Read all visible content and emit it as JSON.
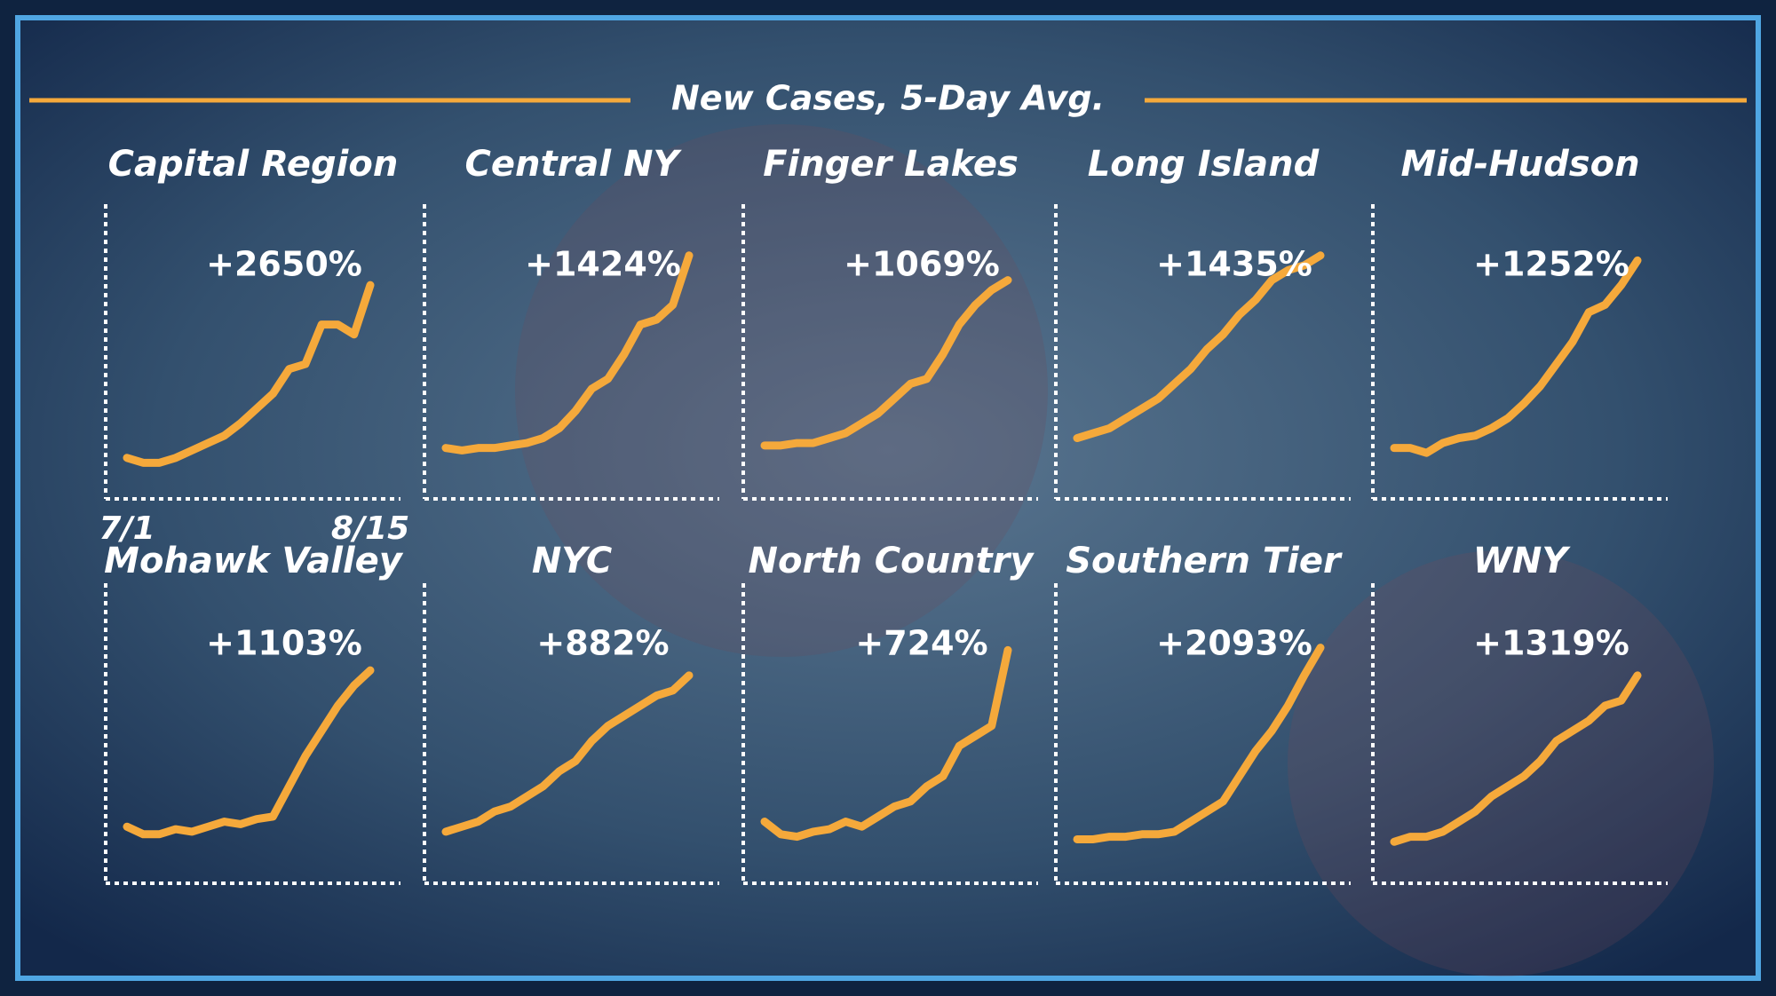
{
  "title": "New Cases, 5-Day Avg.",
  "chart_data": [
    {
      "type": "line",
      "title": "Capital Region",
      "annotation": "+2650%",
      "color": "#f5a93b",
      "xlim": [
        0,
        15
      ],
      "ylim": [
        0,
        100
      ],
      "xticks": [
        {
          "value": 0,
          "label": "7/1"
        },
        {
          "value": 15,
          "label": "8/15"
        }
      ],
      "values": [
        8,
        6,
        6,
        8,
        11,
        14,
        17,
        22,
        28,
        34,
        44,
        46,
        62,
        62,
        58,
        78
      ]
    },
    {
      "type": "line",
      "title": "Central NY",
      "annotation": "+1424%",
      "color": "#f5a93b",
      "xlim": [
        0,
        15
      ],
      "ylim": [
        0,
        100
      ],
      "values": [
        12,
        11,
        12,
        12,
        13,
        14,
        16,
        20,
        27,
        36,
        40,
        50,
        62,
        64,
        70,
        90
      ]
    },
    {
      "type": "line",
      "title": "Finger Lakes",
      "annotation": "+1069%",
      "color": "#f5a93b",
      "xlim": [
        0,
        15
      ],
      "ylim": [
        0,
        100
      ],
      "values": [
        13,
        13,
        14,
        14,
        16,
        18,
        22,
        26,
        32,
        38,
        40,
        50,
        62,
        70,
        76,
        80
      ]
    },
    {
      "type": "line",
      "title": "Long Island",
      "annotation": "+1435%",
      "color": "#f5a93b",
      "xlim": [
        0,
        15
      ],
      "ylim": [
        0,
        100
      ],
      "values": [
        16,
        18,
        20,
        24,
        28,
        32,
        38,
        44,
        52,
        58,
        66,
        72,
        80,
        84,
        86,
        90
      ]
    },
    {
      "type": "line",
      "title": "Mid-Hudson",
      "annotation": "+1252%",
      "color": "#f5a93b",
      "xlim": [
        0,
        15
      ],
      "ylim": [
        0,
        100
      ],
      "values": [
        12,
        12,
        10,
        14,
        16,
        17,
        20,
        24,
        30,
        37,
        46,
        55,
        67,
        70,
        78,
        88
      ]
    },
    {
      "type": "line",
      "title": "Mohawk Valley",
      "annotation": "+1103%",
      "color": "#f5a93b",
      "xlim": [
        0,
        15
      ],
      "ylim": [
        0,
        100
      ],
      "values": [
        14,
        11,
        11,
        13,
        12,
        14,
        16,
        15,
        17,
        18,
        30,
        42,
        52,
        62,
        70,
        76
      ]
    },
    {
      "type": "line",
      "title": "NYC",
      "annotation": "+882%",
      "color": "#f5a93b",
      "xlim": [
        0,
        15
      ],
      "ylim": [
        0,
        100
      ],
      "values": [
        12,
        14,
        16,
        20,
        22,
        26,
        30,
        36,
        40,
        48,
        54,
        58,
        62,
        66,
        68,
        74
      ]
    },
    {
      "type": "line",
      "title": "North Country",
      "annotation": "+724%",
      "color": "#f5a93b",
      "xlim": [
        0,
        15
      ],
      "ylim": [
        0,
        100
      ],
      "values": [
        16,
        11,
        10,
        12,
        13,
        16,
        14,
        18,
        22,
        24,
        30,
        34,
        46,
        50,
        54,
        84
      ]
    },
    {
      "type": "line",
      "title": "Southern Tier",
      "annotation": "+2093%",
      "color": "#f5a93b",
      "xlim": [
        0,
        15
      ],
      "ylim": [
        0,
        100
      ],
      "values": [
        9,
        9,
        10,
        10,
        11,
        11,
        12,
        16,
        20,
        24,
        34,
        44,
        52,
        62,
        74,
        85
      ]
    },
    {
      "type": "line",
      "title": "WNY",
      "annotation": "+1319%",
      "color": "#f5a93b",
      "xlim": [
        0,
        15
      ],
      "ylim": [
        0,
        100
      ],
      "values": [
        8,
        10,
        10,
        12,
        16,
        20,
        26,
        30,
        34,
        40,
        48,
        52,
        56,
        62,
        64,
        74
      ]
    }
  ]
}
